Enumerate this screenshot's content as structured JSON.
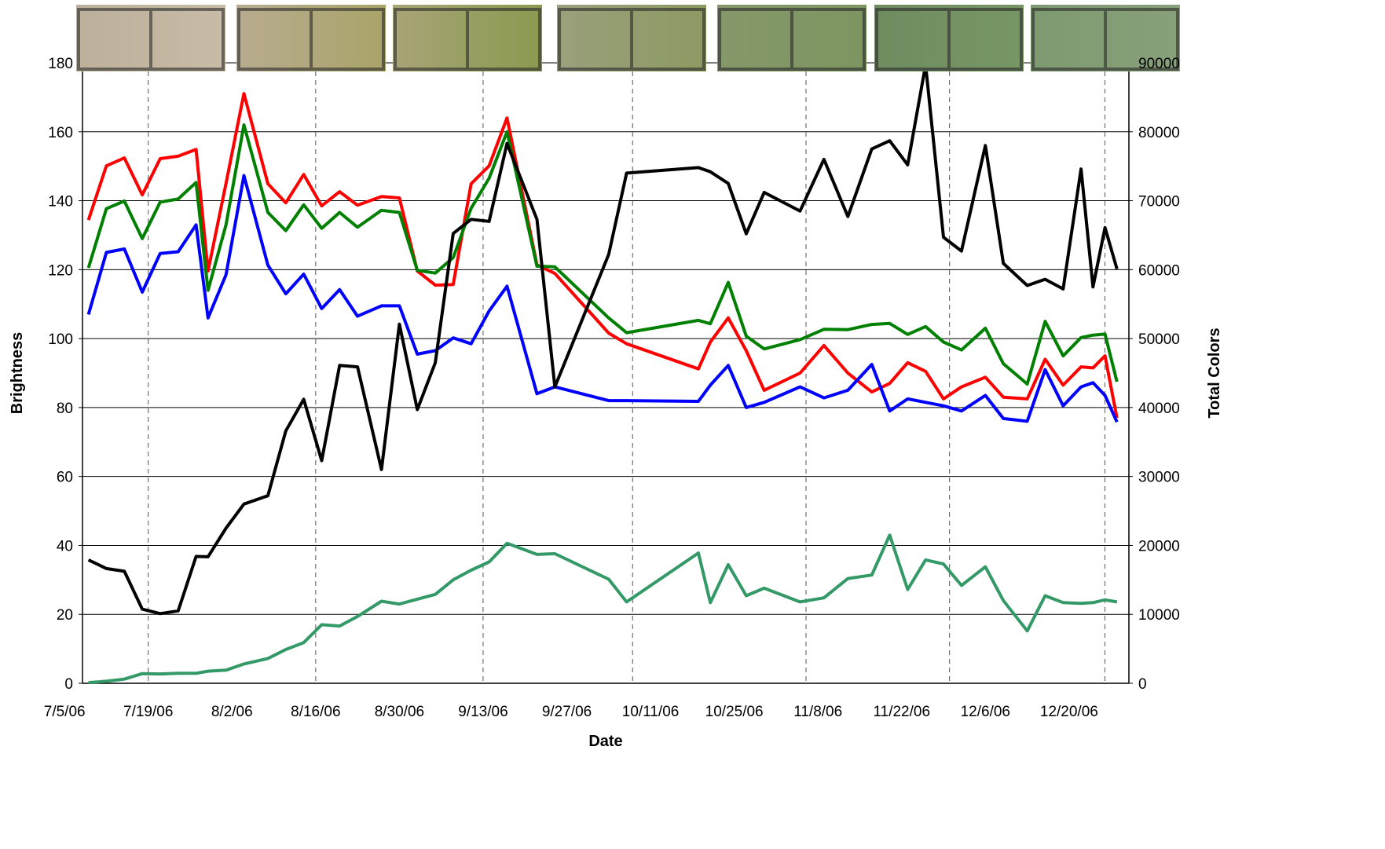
{
  "chart_data": {
    "type": "line",
    "x_label": "Date",
    "y_label": "Brightness",
    "y2_label": "Total Colors",
    "x": [
      "7/9/06",
      "7/12/06",
      "7/15/06",
      "7/18/06",
      "7/21/06",
      "7/24/06",
      "7/27/06",
      "7/29/06",
      "8/1/06",
      "8/4/06",
      "8/8/06",
      "8/11/06",
      "8/14/06",
      "8/17/06",
      "8/20/06",
      "8/23/06",
      "8/27/06",
      "8/30/06",
      "9/2/06",
      "9/5/06",
      "9/8/06",
      "9/11/06",
      "9/14/06",
      "9/17/06",
      "9/22/06",
      "9/25/06",
      "10/4/06",
      "10/7/06",
      "10/19/06",
      "10/21/06",
      "10/24/06",
      "10/27/06",
      "10/30/06",
      "11/5/06",
      "11/9/06",
      "11/13/06",
      "11/17/06",
      "11/20/06",
      "11/23/06",
      "11/26/06",
      "11/29/06",
      "12/2/06",
      "12/6/06",
      "12/9/06",
      "12/13/06",
      "12/16/06",
      "12/19/06",
      "12/22/06",
      "12/24/06",
      "12/26/06",
      "12/28/06"
    ],
    "series": [
      {
        "color": "#ff0000",
        "values": [
          134.4,
          150.1,
          152.4,
          141.7,
          152.2,
          152.9,
          154.9,
          119.6,
          145,
          171.1,
          144.9,
          139.4,
          147.6,
          138.5,
          142.6,
          138.7,
          141.2,
          140.8,
          119.6,
          115.5,
          115.7,
          144.9,
          150.1,
          164,
          121.4,
          118.9,
          101.6,
          98.5,
          91.2,
          99,
          106,
          96.5,
          85,
          90,
          98,
          90,
          84.5,
          87,
          93,
          90.5,
          82.5,
          86,
          88.8,
          83,
          82.5,
          94,
          86.5,
          91.8,
          91.5,
          95,
          77
        ]
      },
      {
        "color": "#008000",
        "values": [
          120.5,
          137.7,
          139.9,
          129,
          139.6,
          140.5,
          145.3,
          114,
          133,
          162,
          136.6,
          131.3,
          138.8,
          132,
          136.6,
          132.3,
          137.2,
          136.6,
          119.8,
          119,
          123.5,
          137.8,
          146.5,
          160,
          121,
          120.8,
          106,
          101.7,
          105.3,
          104.3,
          116.3,
          100.7,
          97,
          99.7,
          102.7,
          102.6,
          104.1,
          104.4,
          101.2,
          103.5,
          99,
          96.7,
          103,
          92.7,
          86.8,
          105,
          95,
          100.3,
          101,
          101.3,
          87.5
        ]
      },
      {
        "color": "#0000ff",
        "values": [
          107,
          125,
          126,
          113.5,
          124.7,
          125.2,
          133,
          106,
          118.5,
          147.3,
          121.3,
          113,
          118.7,
          108.7,
          114.2,
          106.5,
          109.5,
          109.5,
          95.5,
          96.5,
          100.2,
          98.5,
          108,
          115.2,
          84,
          86,
          82,
          82,
          81.8,
          86.5,
          92.2,
          80,
          81.5,
          86,
          82.8,
          85,
          92.5,
          79,
          82.5,
          81.5,
          80.5,
          79,
          83.5,
          76.8,
          76,
          91,
          80.5,
          86,
          87.2,
          83.5,
          75.8
        ]
      },
      {
        "color": "#000000",
        "axis": "y2",
        "values": [
          17900,
          16650,
          16250,
          10750,
          10100,
          10500,
          18400,
          18350,
          22500,
          26000,
          27200,
          36600,
          41200,
          32300,
          46100,
          45900,
          31000,
          52100,
          39700,
          46500,
          65250,
          67300,
          67000,
          78300,
          67300,
          43000,
          62200,
          74000,
          74800,
          74200,
          72500,
          65200,
          71200,
          68500,
          76000,
          67700,
          77500,
          78700,
          75200,
          89700,
          64700,
          62700,
          78000,
          60900,
          57700,
          58600,
          57200,
          74600,
          57500,
          66100,
          60100
        ]
      },
      {
        "color": "#339966",
        "axis": "y2",
        "values": [
          100,
          300,
          600,
          1400,
          1350,
          1450,
          1450,
          1750,
          1900,
          2800,
          3600,
          4900,
          5900,
          8500,
          8300,
          9700,
          11900,
          11500,
          12200,
          12900,
          15000,
          16400,
          17600,
          20300,
          18700,
          18800,
          15100,
          11800,
          18900,
          11700,
          17200,
          12700,
          13800,
          11800,
          12400,
          15200,
          15700,
          21500,
          13600,
          17900,
          17300,
          14200,
          16900,
          12000,
          7600,
          12700,
          11700,
          11600,
          11700,
          12100,
          11800
        ]
      }
    ],
    "photo_dates": [
      "7/19/06",
      "8/16/06",
      "9/13/06",
      "10/8/06",
      "11/6/06",
      "11/30/06",
      "12/26/06"
    ],
    "xlim": [
      "7/8/06",
      "12/30/06"
    ],
    "xticks": [
      "7/5/06",
      "7/19/06",
      "8/2/06",
      "8/16/06",
      "8/30/06",
      "9/13/06",
      "9/27/06",
      "10/11/06",
      "10/25/06",
      "11/8/06",
      "11/22/06",
      "12/6/06",
      "12/20/06"
    ],
    "ylim": [
      0,
      180
    ],
    "yticks": [
      0,
      20,
      40,
      60,
      80,
      100,
      120,
      140,
      160,
      180
    ],
    "y2lim": [
      0,
      90000
    ],
    "y2ticks": [
      0,
      10000,
      20000,
      30000,
      40000,
      50000,
      60000,
      70000,
      80000,
      90000
    ],
    "grid": true
  }
}
